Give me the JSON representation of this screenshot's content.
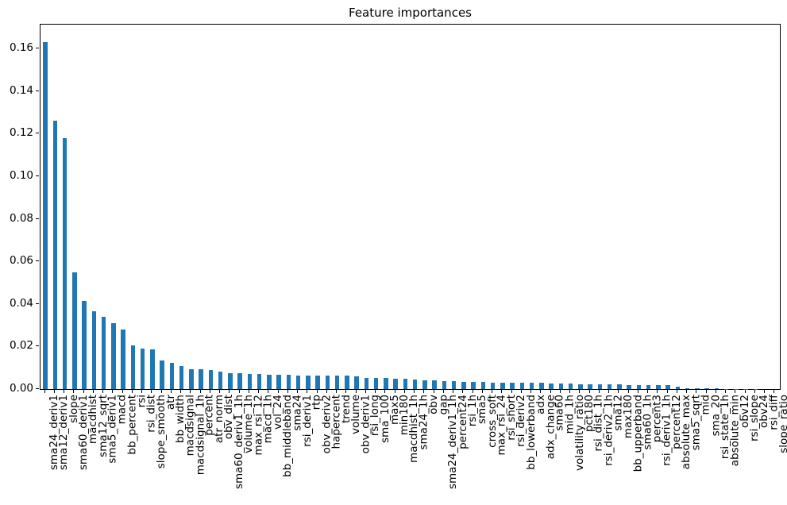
{
  "figure": {
    "background": "#ffffff",
    "axis_color": "#000000"
  },
  "chart_data": {
    "type": "bar",
    "title": "Feature importances",
    "xlabel": "",
    "ylabel": "",
    "bar_color": "#1f77b4",
    "grid": false,
    "legend": null,
    "ylim": [
      0,
      0.1712
    ],
    "yticks": [
      0.0,
      0.02,
      0.04,
      0.06,
      0.08,
      0.1,
      0.12,
      0.14,
      0.16
    ],
    "ytick_labels": [
      "0.00",
      "0.02",
      "0.04",
      "0.06",
      "0.08",
      "0.10",
      "0.12",
      "0.14",
      "0.16"
    ],
    "x_label_rotation": 90,
    "categories": [
      "sma24_deriv1",
      "sma12_deriv1",
      "slope",
      "sma60_deriv1",
      "macdhist",
      "sma12_sqrt",
      "sma5_deriv1",
      "macd",
      "bb_percent",
      "rsi",
      "rsi_dist",
      "slope_smooth",
      "atr",
      "bb_width",
      "macdsignal",
      "macdsignal_1h",
      "percent",
      "atr_norm",
      "obv_dist",
      "sma60_deriv1_1h",
      "volume_1h",
      "max_rsi_12",
      "macd_1h",
      "vol_24",
      "bb_middleband",
      "sma24",
      "rsi_deriv1",
      "rtp",
      "obv_deriv2",
      "hapercent",
      "trend",
      "volume",
      "obv_deriv1",
      "rsi_long",
      "sma_100",
      "max5",
      "min180",
      "macdhist_1h",
      "sma24_1h",
      "obv",
      "gap",
      "sma24_deriv1_1h",
      "percent24",
      "rsi_1h",
      "sma5",
      "cross_soft",
      "max_rsi_24",
      "rsi_short",
      "rsi_deriv2",
      "bb_lowerband",
      "adx",
      "adx_change",
      "sma60",
      "mid_1h",
      "volatility_ratio",
      "pct180",
      "rsi_dist_1h",
      "rsi_deriv2_1h",
      "sma12",
      "max180",
      "bb_upperband",
      "sma60_1h",
      "percent3",
      "rsi_deriv1_1h",
      "percent12",
      "absolute_max",
      "sma5_sqrt",
      "mid",
      "sma_20",
      "rsi_state_1h",
      "absolute_min",
      "obv12",
      "rsi_slope",
      "obv24",
      "rsi_diff",
      "slope_ratio"
    ],
    "values": [
      0.163,
      0.126,
      0.118,
      0.055,
      0.0415,
      0.0365,
      0.034,
      0.0311,
      0.0281,
      0.0205,
      0.019,
      0.0186,
      0.0134,
      0.0122,
      0.0109,
      0.0095,
      0.0093,
      0.009,
      0.0082,
      0.0074,
      0.0073,
      0.0072,
      0.007,
      0.0069,
      0.0067,
      0.0066,
      0.0065,
      0.0064,
      0.0063,
      0.0063,
      0.0062,
      0.0062,
      0.0061,
      0.0054,
      0.0053,
      0.0052,
      0.0048,
      0.0047,
      0.0044,
      0.0042,
      0.0041,
      0.0039,
      0.0036,
      0.0035,
      0.0034,
      0.0033,
      0.0031,
      0.003,
      0.0029,
      0.0029,
      0.0028,
      0.0028,
      0.0027,
      0.0026,
      0.0025,
      0.0024,
      0.0023,
      0.0022,
      0.0021,
      0.0021,
      0.002,
      0.002,
      0.0019,
      0.0018,
      0.0017,
      0.001,
      0.0004,
      0.0003,
      0.0002,
      0.0002,
      0.0001,
      0.0001,
      0.0001,
      0.0001,
      0.0,
      0.0
    ]
  }
}
